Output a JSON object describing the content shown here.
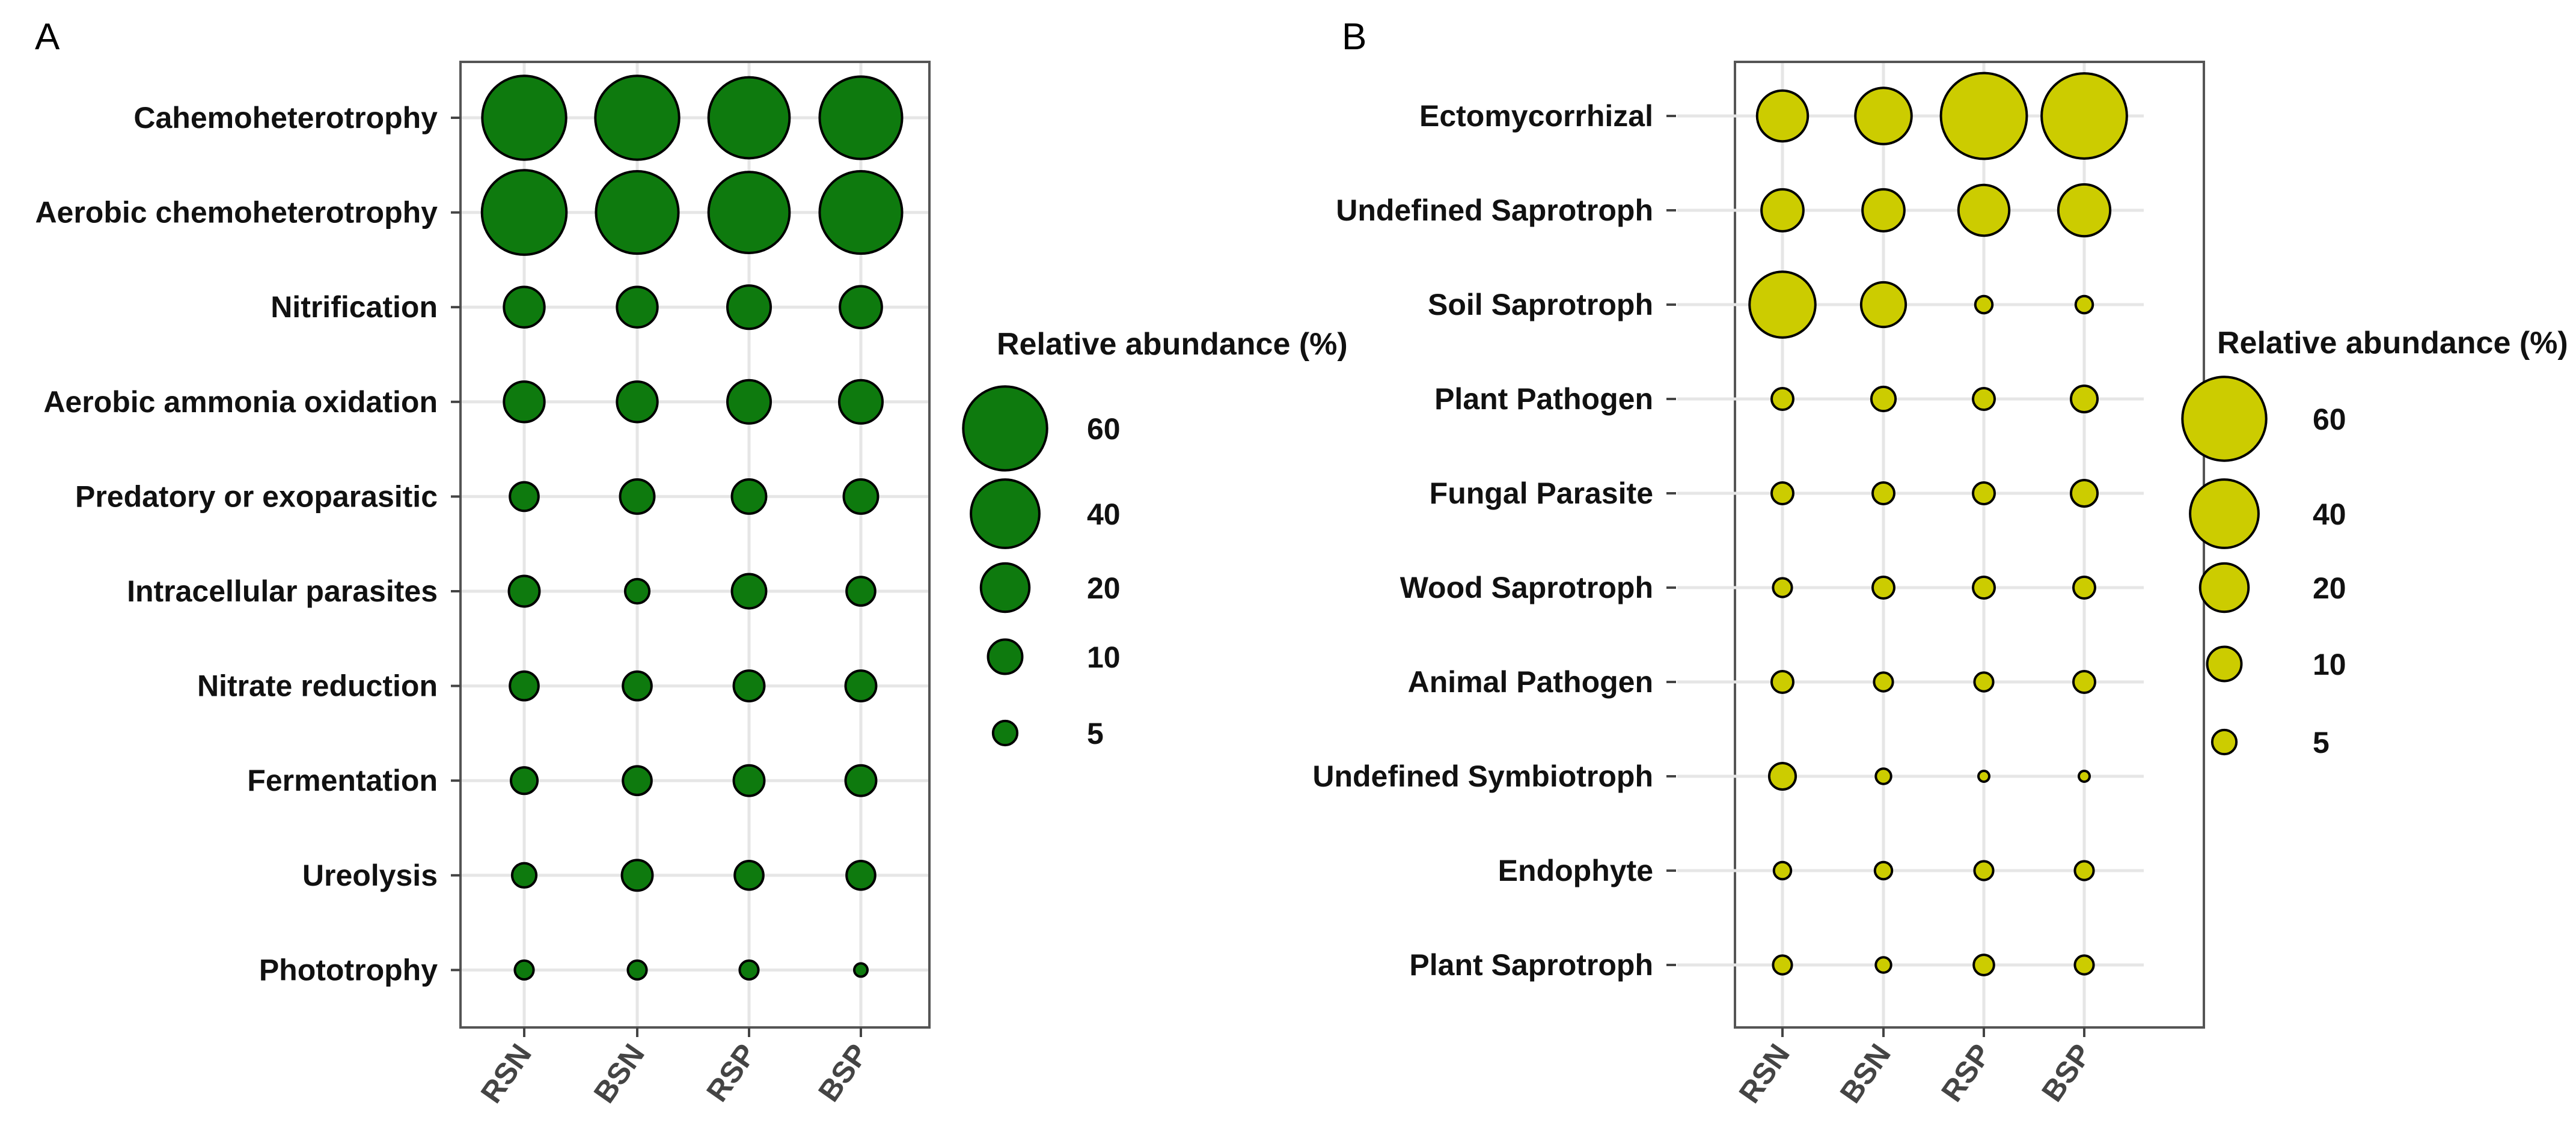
{
  "chart_data": [
    {
      "type": "bubble",
      "panel": "A",
      "categories_x": [
        "RSN",
        "BSN",
        "RSP",
        "BSP"
      ],
      "categories_y": [
        "Cahemoheterotrophy",
        "Aerobic chemoheterotrophy",
        "Nitrification",
        "Aerobic ammonia oxidation ",
        "Predatory or exoparasitic ",
        "Intracellular parasites ",
        "Nitrate reduction",
        "Fermentation",
        "Ureolysis",
        "Phototrophy"
      ],
      "values": [
        [
          60,
          60,
          56,
          58
        ],
        [
          61,
          58,
          56,
          58
        ],
        [
          14,
          14,
          16,
          15
        ],
        [
          14,
          14,
          16,
          16
        ],
        [
          7,
          10,
          10,
          10
        ],
        [
          8,
          5,
          10,
          7
        ],
        [
          7,
          7,
          8,
          8
        ],
        [
          6,
          7,
          8,
          8
        ],
        [
          5,
          8,
          7,
          7
        ],
        [
          3,
          3,
          3,
          1.5
        ]
      ],
      "fill": "#0e7a0e",
      "legend": {
        "title": "Relative abundance (%)",
        "entries": [
          60,
          40,
          20,
          10,
          5
        ],
        "labels": [
          "60",
          "40",
          "20",
          "10",
          "5"
        ]
      }
    },
    {
      "type": "bubble",
      "panel": "B",
      "categories_x": [
        "RSN",
        "BSN",
        "RSP",
        "BSP"
      ],
      "categories_y": [
        "Ectomycorrhizal",
        "Undefined Saprotroph",
        "Soil Saprotroph",
        "Plant Pathogen",
        "Fungal Parasite",
        "Wood Saprotroph",
        "Animal Pathogen",
        "Undefined Symbiotroph",
        "Endophyte",
        "Plant Saprotroph"
      ],
      "values": [
        [
          22,
          27,
          63,
          62
        ],
        [
          15,
          15,
          22,
          23
        ],
        [
          37,
          17,
          2.5,
          2.5
        ],
        [
          4,
          5,
          4,
          6
        ],
        [
          4,
          4,
          4,
          6
        ],
        [
          3,
          4,
          4,
          4
        ],
        [
          4,
          3,
          3,
          4
        ],
        [
          6,
          2,
          1,
          1
        ],
        [
          2.5,
          2.5,
          3,
          3
        ],
        [
          3,
          2,
          3.5,
          3
        ]
      ],
      "fill": "#cccc00",
      "legend": {
        "title": "Relative abundance (%)",
        "entries": [
          60,
          40,
          20,
          10,
          5
        ],
        "labels": [
          "60",
          "40",
          "20",
          "10",
          "5"
        ]
      }
    }
  ]
}
